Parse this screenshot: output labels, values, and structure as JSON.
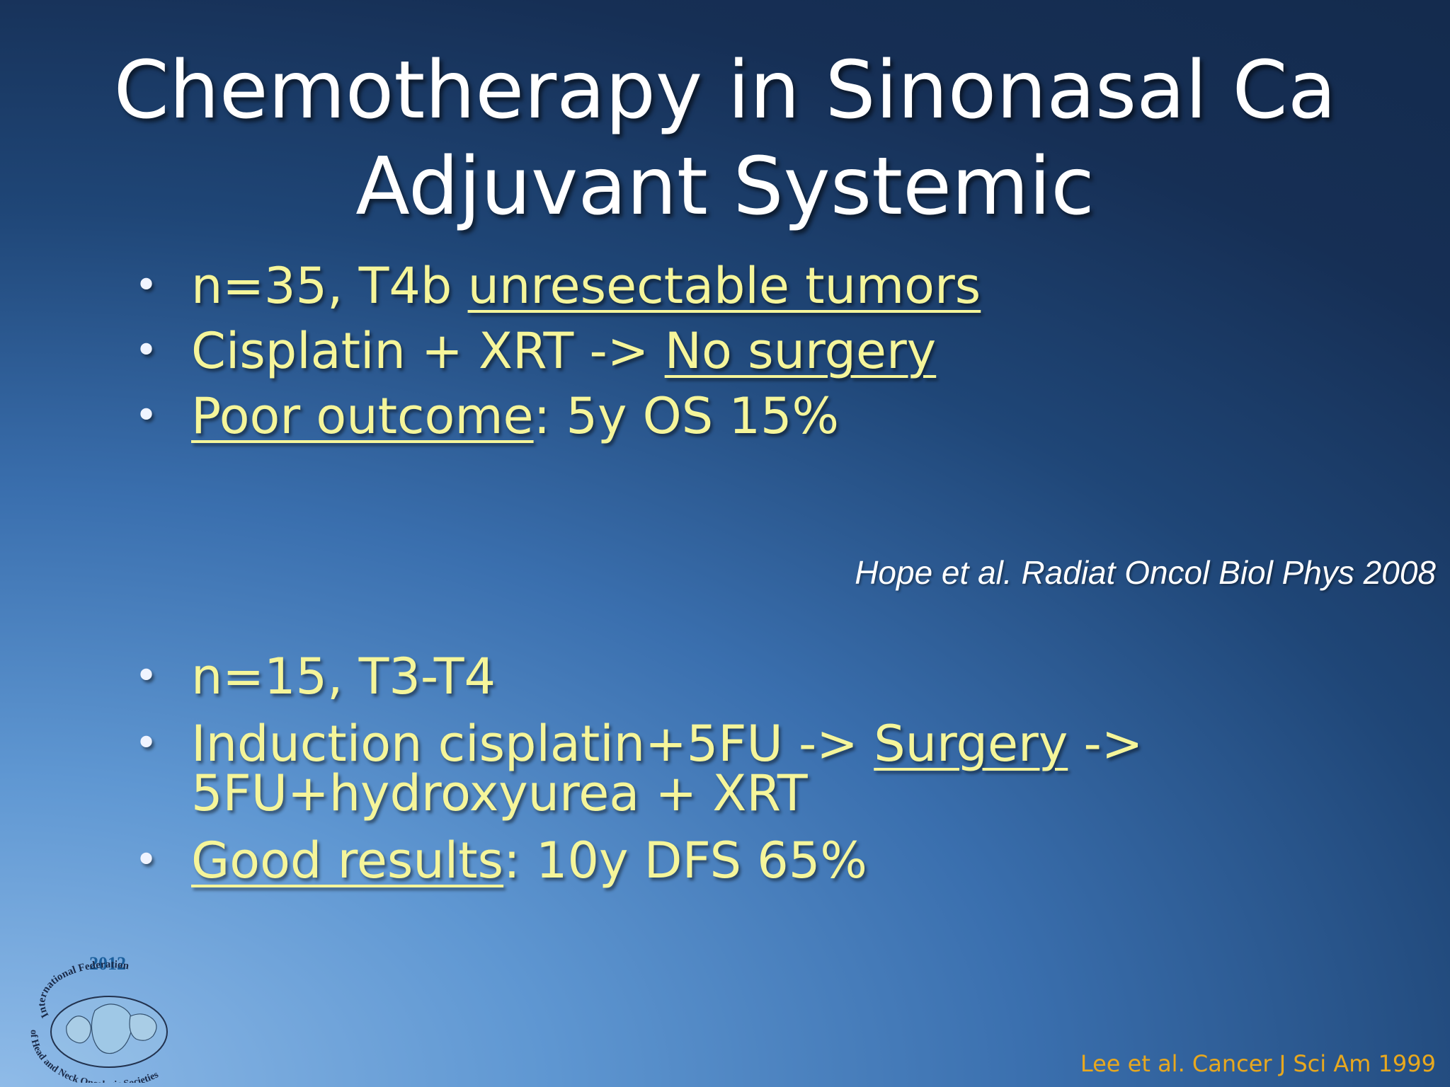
{
  "title": {
    "line1": "Chemotherapy in Sinonasal Ca",
    "line2": "Adjuvant Systemic"
  },
  "group1": {
    "b1": {
      "pre": "n=35, T4b ",
      "u": "unresectable tumors"
    },
    "b2": {
      "pre": "Cisplatin + XRT -> ",
      "u": "No surgery"
    },
    "b3": {
      "u": "Poor outcome",
      "post": ": 5y OS 15%"
    },
    "citation": "Hope et al. Radiat Oncol Biol Phys 2008"
  },
  "group2": {
    "b1": {
      "text": "n=15, T3-T4"
    },
    "b2": {
      "pre": "Induction cisplatin+5FU -> ",
      "u": "Surgery",
      "post": " ->",
      "line2": "5FU+hydroxyurea + XRT"
    },
    "b3": {
      "u": "Good results",
      "post": ": 10y DFS 65%"
    },
    "citation": "Lee et al. Cancer J Sci Am 1999"
  },
  "logo": {
    "year": "2012",
    "text_top": "International Federation",
    "text_bottom": "of Head and Neck Oncologic Societies"
  },
  "bullet_glyph": "•"
}
